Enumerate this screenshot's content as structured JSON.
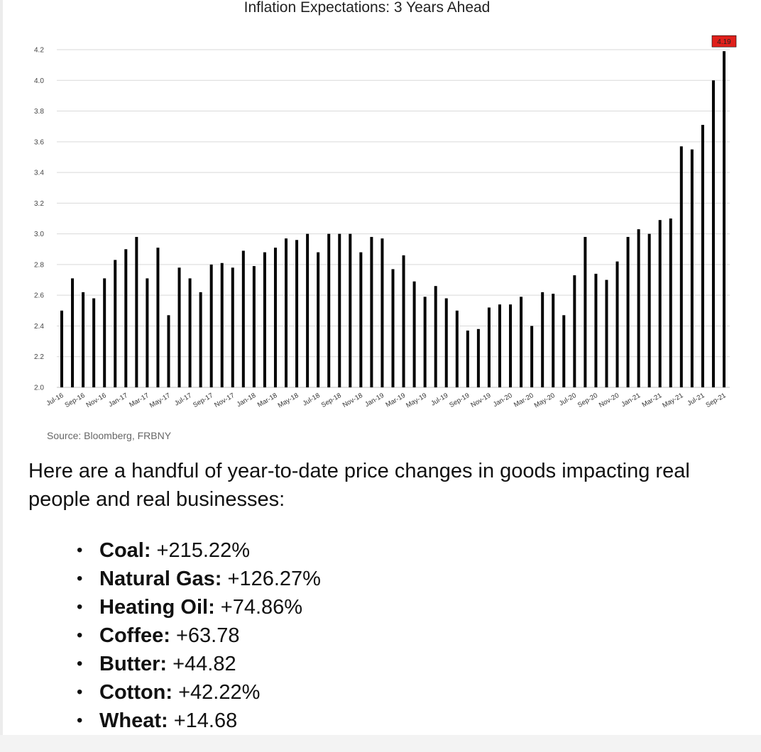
{
  "chart_data": {
    "type": "bar",
    "title": "Inflation Expectations: 3 Years Ahead",
    "source": "Source: Bloomberg, FRBNY",
    "ylim": [
      2.0,
      4.2
    ],
    "yticks": [
      "2.0",
      "2.2",
      "2.4",
      "2.6",
      "2.8",
      "3.0",
      "3.2",
      "3.4",
      "3.6",
      "3.8",
      "4.0",
      "4.2"
    ],
    "grid": true,
    "categories": [
      "Jul-16",
      "Aug-16",
      "Sep-16",
      "Oct-16",
      "Nov-16",
      "Dec-16",
      "Jan-17",
      "Feb-17",
      "Mar-17",
      "Apr-17",
      "May-17",
      "Jun-17",
      "Jul-17",
      "Aug-17",
      "Sep-17",
      "Oct-17",
      "Nov-17",
      "Dec-17",
      "Jan-18",
      "Feb-18",
      "Mar-18",
      "Apr-18",
      "May-18",
      "Jun-18",
      "Jul-18",
      "Aug-18",
      "Sep-18",
      "Oct-18",
      "Nov-18",
      "Dec-18",
      "Jan-19",
      "Feb-19",
      "Mar-19",
      "Apr-19",
      "May-19",
      "Jun-19",
      "Jul-19",
      "Aug-19",
      "Sep-19",
      "Oct-19",
      "Nov-19",
      "Dec-19",
      "Jan-20",
      "Feb-20",
      "Mar-20",
      "Apr-20",
      "May-20",
      "Jun-20",
      "Jul-20",
      "Aug-20",
      "Sep-20",
      "Oct-20",
      "Nov-20",
      "Dec-20",
      "Jan-21",
      "Feb-21",
      "Mar-21",
      "Apr-21",
      "May-21",
      "Jun-21",
      "Jul-21",
      "Aug-21",
      "Sep-21"
    ],
    "tick_labels": [
      "Jul-16",
      "Sep-16",
      "Nov-16",
      "Jan-17",
      "Mar-17",
      "May-17",
      "Jul-17",
      "Sep-17",
      "Nov-17",
      "Jan-18",
      "Mar-18",
      "May-18",
      "Jul-18",
      "Sep-18",
      "Nov-18",
      "Jan-19",
      "Mar-19",
      "May-19",
      "Jul-19",
      "Sep-19",
      "Nov-19",
      "Jan-20",
      "Mar-20",
      "May-20",
      "Jul-20",
      "Sep-20",
      "Nov-20",
      "Jan-21",
      "Mar-21",
      "May-21",
      "Jul-21",
      "Sep-21"
    ],
    "values": [
      2.5,
      2.71,
      2.62,
      2.58,
      2.71,
      2.83,
      2.9,
      2.98,
      2.71,
      2.91,
      2.47,
      2.78,
      2.71,
      2.62,
      2.8,
      2.81,
      2.78,
      2.89,
      2.79,
      2.88,
      2.91,
      2.97,
      2.96,
      3.0,
      2.88,
      3.0,
      3.0,
      3.0,
      2.88,
      2.98,
      2.97,
      2.77,
      2.86,
      2.69,
      2.59,
      2.66,
      2.58,
      2.5,
      2.37,
      2.38,
      2.52,
      2.54,
      2.54,
      2.59,
      2.4,
      2.62,
      2.61,
      2.47,
      2.73,
      2.98,
      2.74,
      2.7,
      2.82,
      2.98,
      3.03,
      3.0,
      3.09,
      3.1,
      3.57,
      3.55,
      3.71,
      4.0,
      4.19
    ],
    "highlight": {
      "label": "4.19",
      "color": "#e0201b"
    }
  },
  "article": {
    "intro": "Here are a handful of year-to-date price changes in goods impacting real people and real businesses:",
    "items": [
      {
        "name": "Coal:",
        "value": " +215.22%"
      },
      {
        "name": "Natural Gas:",
        "value": " +126.27%"
      },
      {
        "name": "Heating Oil:",
        "value": " +74.86%"
      },
      {
        "name": "Coffee:",
        "value": " +63.78"
      },
      {
        "name": "Butter:",
        "value": " +44.82"
      },
      {
        "name": "Cotton:",
        "value": " +42.22%"
      },
      {
        "name": "Wheat:",
        "value": " +14.68"
      }
    ],
    "bullet": "•"
  },
  "colors": {
    "bar": "#000000",
    "grid": "#d9d9d9",
    "highlight": "#e0201b"
  }
}
